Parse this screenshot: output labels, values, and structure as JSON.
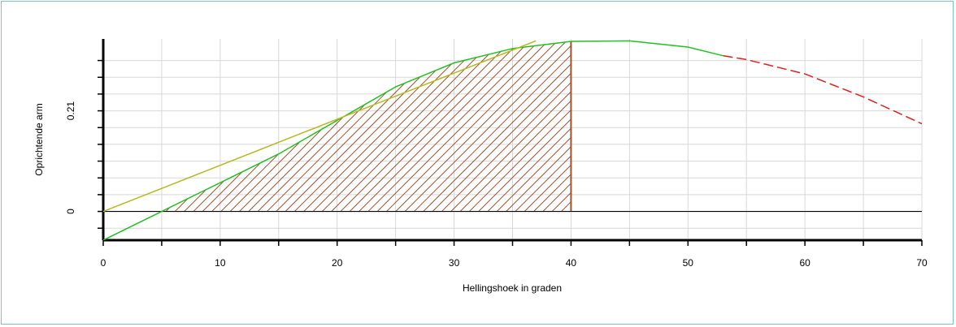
{
  "chart_data": {
    "type": "line",
    "title": "",
    "xlabel": "Hellingshoek in graden",
    "ylabel": "Oprichtende arm",
    "xlim": [
      0,
      70
    ],
    "ylim": [
      -0.06,
      0.36
    ],
    "xticks": [
      0,
      10,
      20,
      30,
      40,
      50,
      60,
      70
    ],
    "yticks": [
      0,
      0.21
    ],
    "ytick_labels": [
      "0",
      "0.21"
    ],
    "grid": true,
    "colors": {
      "gz_curve": "#22c022",
      "gz_curve_dashed": "#e02020",
      "tangent": "#b8b820",
      "hatch": "#a0522d",
      "zero_line": "#000000",
      "grid": "#d8d8d8",
      "frame": "#7cc0c6"
    },
    "series": [
      {
        "style": "solid",
        "color": "#22c022",
        "x": [
          0,
          5,
          10,
          15,
          20,
          25,
          30,
          35,
          40,
          45,
          50,
          53
        ],
        "y": [
          -0.06,
          0.0,
          0.06,
          0.12,
          0.19,
          0.26,
          0.31,
          0.34,
          0.355,
          0.356,
          0.343,
          0.325
        ]
      },
      {
        "style": "dashed",
        "color": "#e02020",
        "x": [
          53,
          55,
          60,
          65,
          70
        ],
        "y": [
          0.325,
          0.317,
          0.287,
          0.239,
          0.183
        ]
      },
      {
        "style": "solid",
        "color": "#b8b820",
        "x": [
          0,
          37
        ],
        "y": [
          0.0,
          0.356
        ]
      }
    ],
    "hatched_area": {
      "x_from": 5,
      "x_to": 40,
      "color": "#a0522d"
    }
  }
}
